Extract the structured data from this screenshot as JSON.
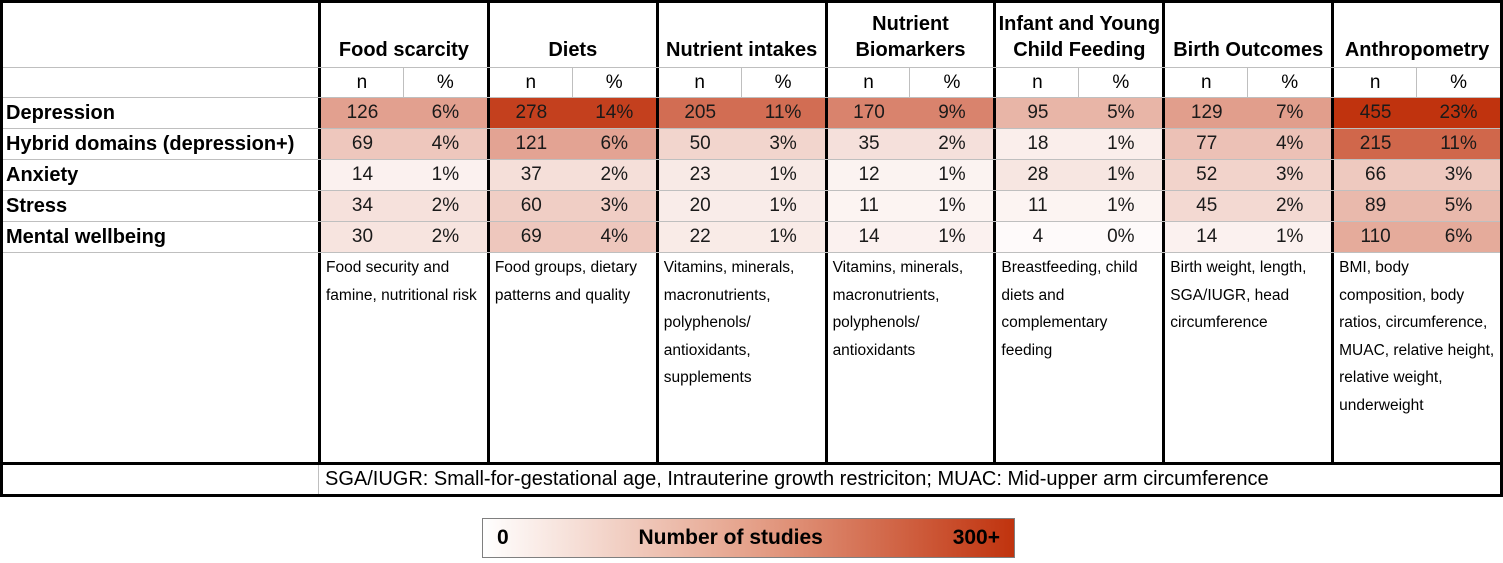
{
  "heat": {
    "min_color": "#FFFFFF",
    "max_color": "#C0330E",
    "max_n": 300,
    "gamma": 0.88
  },
  "table": {
    "subheader": {
      "n": "n",
      "pct": "%"
    },
    "columns": [
      {
        "label": "Food scarcity",
        "description": "Food security and famine, nutritional risk"
      },
      {
        "label": "Diets",
        "description": "Food groups, dietary patterns and quality"
      },
      {
        "label": "Nutrient intakes",
        "description": "Vitamins, minerals, macronutrients, polyphenols/ antioxidants, supplements"
      },
      {
        "label": "Nutrient Biomarkers",
        "description": "Vitamins, minerals, macronutrients, polyphenols/ antioxidants"
      },
      {
        "label": "Infant and Young Child Feeding",
        "description": "Breastfeeding, child diets and complementary feeding"
      },
      {
        "label": "Birth Outcomes",
        "description": "Birth weight, length, SGA/IUGR, head circumference"
      },
      {
        "label": "Anthropometry",
        "description": "BMI, body composition, body ratios, circumference, MUAC, relative height, relative weight, underweight"
      }
    ],
    "rows": [
      {
        "label": "Depression",
        "cells": [
          {
            "n": 126,
            "pct": "6%"
          },
          {
            "n": 278,
            "pct": "14%"
          },
          {
            "n": 205,
            "pct": "11%"
          },
          {
            "n": 170,
            "pct": "9%"
          },
          {
            "n": 95,
            "pct": "5%"
          },
          {
            "n": 129,
            "pct": "7%"
          },
          {
            "n": 455,
            "pct": "23%"
          }
        ]
      },
      {
        "label": "Hybrid domains (depression+)",
        "cells": [
          {
            "n": 69,
            "pct": "4%"
          },
          {
            "n": 121,
            "pct": "6%"
          },
          {
            "n": 50,
            "pct": "3%"
          },
          {
            "n": 35,
            "pct": "2%"
          },
          {
            "n": 18,
            "pct": "1%"
          },
          {
            "n": 77,
            "pct": "4%"
          },
          {
            "n": 215,
            "pct": "11%"
          }
        ]
      },
      {
        "label": "Anxiety",
        "cells": [
          {
            "n": 14,
            "pct": "1%"
          },
          {
            "n": 37,
            "pct": "2%"
          },
          {
            "n": 23,
            "pct": "1%"
          },
          {
            "n": 12,
            "pct": "1%"
          },
          {
            "n": 28,
            "pct": "1%"
          },
          {
            "n": 52,
            "pct": "3%"
          },
          {
            "n": 66,
            "pct": "3%"
          }
        ]
      },
      {
        "label": "Stress",
        "cells": [
          {
            "n": 34,
            "pct": "2%"
          },
          {
            "n": 60,
            "pct": "3%"
          },
          {
            "n": 20,
            "pct": "1%"
          },
          {
            "n": 11,
            "pct": "1%"
          },
          {
            "n": 11,
            "pct": "1%"
          },
          {
            "n": 45,
            "pct": "2%"
          },
          {
            "n": 89,
            "pct": "5%"
          }
        ]
      },
      {
        "label": "Mental wellbeing",
        "cells": [
          {
            "n": 30,
            "pct": "2%"
          },
          {
            "n": 69,
            "pct": "4%"
          },
          {
            "n": 22,
            "pct": "1%"
          },
          {
            "n": 14,
            "pct": "1%"
          },
          {
            "n": 4,
            "pct": "0%"
          },
          {
            "n": 14,
            "pct": "1%"
          },
          {
            "n": 110,
            "pct": "6%"
          }
        ]
      }
    ],
    "footnote": "SGA/IUGR: Small-for-gestational age, Intrauterine growth restriciton; MUAC: Mid-upper arm circumference"
  },
  "legend": {
    "min_label": "0",
    "title": "Number of studies",
    "max_label": "300+"
  },
  "chart_data": {
    "type": "heatmap",
    "title": "",
    "columns": [
      "Food scarcity",
      "Diets",
      "Nutrient intakes",
      "Nutrient Biomarkers",
      "Infant and Young Child Feeding",
      "Birth Outcomes",
      "Anthropometry"
    ],
    "rows": [
      "Depression",
      "Hybrid domains (depression+)",
      "Anxiety",
      "Stress",
      "Mental wellbeing"
    ],
    "n_values": [
      [
        126,
        278,
        205,
        170,
        95,
        129,
        455
      ],
      [
        69,
        121,
        50,
        35,
        18,
        77,
        215
      ],
      [
        14,
        37,
        23,
        12,
        28,
        52,
        66
      ],
      [
        34,
        60,
        20,
        11,
        11,
        45,
        89
      ],
      [
        30,
        69,
        22,
        14,
        4,
        14,
        110
      ]
    ],
    "pct_values": [
      [
        "6%",
        "14%",
        "11%",
        "9%",
        "5%",
        "7%",
        "23%"
      ],
      [
        "4%",
        "6%",
        "3%",
        "2%",
        "1%",
        "4%",
        "11%"
      ],
      [
        "1%",
        "2%",
        "1%",
        "1%",
        "1%",
        "3%",
        "3%"
      ],
      [
        "2%",
        "3%",
        "1%",
        "1%",
        "1%",
        "2%",
        "5%"
      ],
      [
        "2%",
        "4%",
        "1%",
        "1%",
        "0%",
        "1%",
        "6%"
      ]
    ],
    "color_scale": {
      "min": 0,
      "max_label": "300+",
      "min_color": "#FFFFFF",
      "max_color": "#C0330E"
    },
    "legend_title": "Number of studies",
    "legend_position": "bottom-center"
  }
}
